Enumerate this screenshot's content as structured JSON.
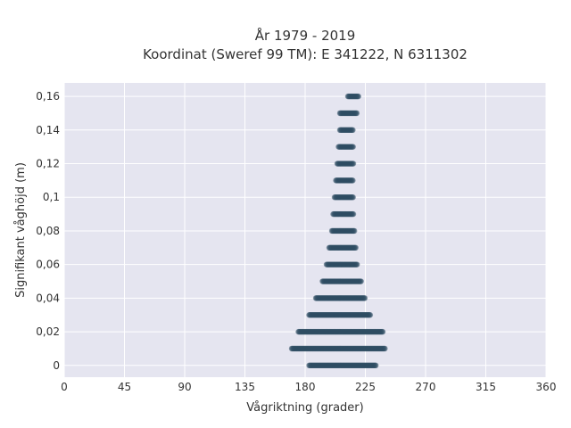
{
  "chart_data": {
    "type": "scatter",
    "title_lines": [
      "År 1979 - 2019",
      "Koordinat (Sweref 99 TM): E 341222, N 6311302"
    ],
    "xlabel": "Vågriktning (grader)",
    "ylabel": "Signifikant våghöjd (m)",
    "xlim": [
      0,
      360
    ],
    "ylim": [
      -0.007,
      0.168
    ],
    "xticks": [
      0,
      45,
      90,
      135,
      180,
      225,
      270,
      315,
      360
    ],
    "xtick_labels": [
      "0",
      "45",
      "90",
      "135",
      "180",
      "225",
      "270",
      "315",
      "360"
    ],
    "yticks": [
      0,
      0.02,
      0.04,
      0.06,
      0.08,
      0.1,
      0.12,
      0.14,
      0.16
    ],
    "ytick_labels": [
      "0",
      "0,02",
      "0,04",
      "0,06",
      "0,08",
      "0,1",
      "0,12",
      "0,14",
      "0,16"
    ],
    "grid": true,
    "marker_color": "#2e4d63",
    "plot_bg": "#e5e5f0",
    "point_groups": [
      {
        "height": 0,
        "dir_min": 183,
        "dir_max": 233
      },
      {
        "height": 0.01,
        "dir_min": 170,
        "dir_max": 240
      },
      {
        "height": 0.02,
        "dir_min": 175,
        "dir_max": 238
      },
      {
        "height": 0.03,
        "dir_min": 183,
        "dir_max": 229
      },
      {
        "height": 0.04,
        "dir_min": 188,
        "dir_max": 225
      },
      {
        "height": 0.05,
        "dir_min": 193,
        "dir_max": 222
      },
      {
        "height": 0.06,
        "dir_min": 196,
        "dir_max": 219
      },
      {
        "height": 0.07,
        "dir_min": 198,
        "dir_max": 218
      },
      {
        "height": 0.08,
        "dir_min": 200,
        "dir_max": 217
      },
      {
        "height": 0.09,
        "dir_min": 201,
        "dir_max": 216
      },
      {
        "height": 0.1,
        "dir_min": 202,
        "dir_max": 216
      },
      {
        "height": 0.11,
        "dir_min": 203,
        "dir_max": 216
      },
      {
        "height": 0.12,
        "dir_min": 204,
        "dir_max": 216
      },
      {
        "height": 0.13,
        "dir_min": 205,
        "dir_max": 216
      },
      {
        "height": 0.14,
        "dir_min": 206,
        "dir_max": 216
      },
      {
        "height": 0.15,
        "dir_min": 206,
        "dir_max": 219
      },
      {
        "height": 0.16,
        "dir_min": 212,
        "dir_max": 220
      }
    ]
  }
}
